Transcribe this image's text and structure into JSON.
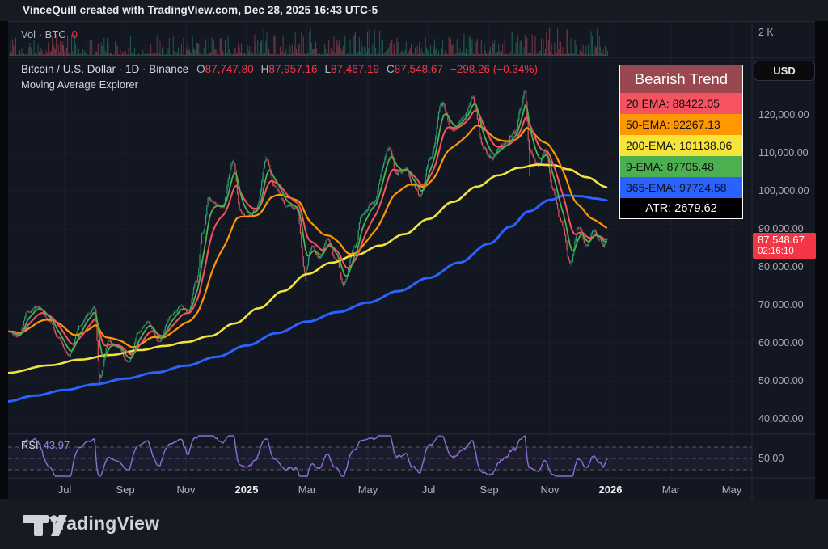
{
  "attribution": "VinceQuill created with TradingView.com, Dec 28, 2025 16:43 UTC-5",
  "volume_pane": {
    "source": "Vol",
    "sep": "·",
    "ticker": "BTC",
    "value": "0",
    "axis_label": "2 K"
  },
  "symbol_row": {
    "pair_line": "Bitcoin / U.S. Dollar · 1D · Binance",
    "ohlc": [
      {
        "k": "O",
        "v": "87,747.80"
      },
      {
        "k": "H",
        "v": "87,957.16"
      },
      {
        "k": "L",
        "v": "87,467.19"
      },
      {
        "k": "C",
        "v": "87,548.67"
      }
    ],
    "change": "−298.26 (−0.34%)"
  },
  "indicator_row": "Moving Average Explorer",
  "legend": {
    "title": "Bearish Trend",
    "title_bg": "#9a4850",
    "title_fg": "#ffffff",
    "rows": [
      {
        "label": "20 EMA: 88422.05",
        "bg": "#f7525f",
        "fg": "#101010"
      },
      {
        "label": "50-EMA: 92267.13",
        "bg": "#ff9800",
        "fg": "#101010"
      },
      {
        "label": "200-EMA: 101138.06",
        "bg": "#f7e43b",
        "fg": "#101010"
      },
      {
        "label": "9-EMA: 87705.48",
        "bg": "#4caf50",
        "fg": "#101010"
      },
      {
        "label": "365-EMA: 97724.58",
        "bg": "#2962ff",
        "fg": "#101010"
      }
    ],
    "atr_row": {
      "label": "ATR: 2679.62",
      "bg": "#000000",
      "fg": "#ffffff"
    }
  },
  "price_axis": {
    "currency_button": "USD",
    "ticks": [
      {
        "label": "120,000.00",
        "value": 120000
      },
      {
        "label": "110,000.00",
        "value": 110000
      },
      {
        "label": "100,000.00",
        "value": 100000
      },
      {
        "label": "90,000.00",
        "value": 90000
      },
      {
        "label": "80,000.00",
        "value": 80000
      },
      {
        "label": "70,000.00",
        "value": 70000
      },
      {
        "label": "60,000.00",
        "value": 60000
      },
      {
        "label": "50,000.00",
        "value": 50000
      },
      {
        "label": "40,000.00",
        "value": 40000
      }
    ],
    "last_price_label": "87,548.67",
    "countdown": "02:16:10"
  },
  "rsi_pane": {
    "label": "RSI",
    "value": "43.97",
    "axis_label": "50.00",
    "levels": [
      70,
      50,
      30
    ]
  },
  "time_axis": {
    "ticks": [
      {
        "label": "Jul",
        "m": 1,
        "bold": false
      },
      {
        "label": "Sep",
        "m": 3,
        "bold": false
      },
      {
        "label": "Nov",
        "m": 5,
        "bold": false
      },
      {
        "label": "2025",
        "m": 7,
        "bold": true
      },
      {
        "label": "Mar",
        "m": 9,
        "bold": false
      },
      {
        "label": "May",
        "m": 11,
        "bold": false
      },
      {
        "label": "Jul",
        "m": 13,
        "bold": false
      },
      {
        "label": "Sep",
        "m": 15,
        "bold": false
      },
      {
        "label": "Nov",
        "m": 17,
        "bold": false
      },
      {
        "label": "2026",
        "m": 19,
        "bold": true
      },
      {
        "label": "Mar",
        "m": 21,
        "bold": false
      },
      {
        "label": "May",
        "m": 23,
        "bold": false
      }
    ]
  },
  "footer": {
    "brand": "TradingView"
  },
  "colors": {
    "chart_bg": "#131722",
    "grid": "rgba(130,140,170,0.10)",
    "separator": "#2a2e39",
    "candle_up": "#2f9e7a",
    "candle_down": "#e25365",
    "ema9": "#4caf50",
    "ema20": "#f7525f",
    "ema50": "#ff9800",
    "ema200": "#f2e33c",
    "ema365": "#2962ff",
    "rsi_line": "#8c6fd0",
    "rsi_band": "rgba(126,87,194,0.09)",
    "rsi_dash": "#8a8e99",
    "accent_red": "#f23645",
    "axis_text": "#a9adb8"
  },
  "chart_data": {
    "type": "candlestick",
    "symbol": "Bitcoin / U.S. Dollar",
    "interval": "1D",
    "exchange": "Binance",
    "today_ohlc": {
      "open": 87747.8,
      "high": 87957.16,
      "low": 87467.19,
      "close": 87548.67,
      "change": -298.26,
      "change_pct": -0.34
    },
    "last_close": 87548.67,
    "indicator_values": {
      "ema9": 87705.48,
      "ema20": 88422.05,
      "ema50": 92267.13,
      "ema200": 101138.06,
      "ema365": 97724.58,
      "atr": 2679.62,
      "rsi": 43.97
    },
    "x_unit": "months_since_2024-06-01",
    "x_range": [
      -0.85,
      23.5
    ],
    "y_range_price": [
      38000,
      131000
    ],
    "rsi_levels": [
      70,
      50,
      30
    ],
    "price_keypoints": [
      [
        -0.9,
        63500
      ],
      [
        -0.55,
        61800
      ],
      [
        -0.2,
        68500
      ],
      [
        0.1,
        69800
      ],
      [
        0.5,
        66300
      ],
      [
        0.8,
        61200
      ],
      [
        1.15,
        57200
      ],
      [
        1.5,
        64800
      ],
      [
        1.8,
        67800
      ],
      [
        1.98,
        69300
      ],
      [
        2.16,
        51200
      ],
      [
        2.45,
        60800
      ],
      [
        2.75,
        58900
      ],
      [
        3.1,
        55200
      ],
      [
        3.45,
        63200
      ],
      [
        3.75,
        65500
      ],
      [
        4.1,
        60700
      ],
      [
        4.5,
        67400
      ],
      [
        4.85,
        69800
      ],
      [
        5.05,
        68200
      ],
      [
        5.35,
        76500
      ],
      [
        5.55,
        89500
      ],
      [
        5.75,
        98300
      ],
      [
        5.95,
        96800
      ],
      [
        6.2,
        95800
      ],
      [
        6.55,
        107800
      ],
      [
        6.8,
        94500
      ],
      [
        6.98,
        93200
      ],
      [
        7.3,
        94800
      ],
      [
        7.65,
        108200
      ],
      [
        7.95,
        101500
      ],
      [
        8.3,
        96300
      ],
      [
        8.65,
        95500
      ],
      [
        8.93,
        78800
      ],
      [
        9.15,
        85500
      ],
      [
        9.4,
        82800
      ],
      [
        9.65,
        87200
      ],
      [
        9.95,
        82300
      ],
      [
        10.2,
        75800
      ],
      [
        10.55,
        85300
      ],
      [
        10.8,
        93800
      ],
      [
        11.15,
        97200
      ],
      [
        11.7,
        111500
      ],
      [
        11.95,
        104800
      ],
      [
        12.25,
        105800
      ],
      [
        12.5,
        101500
      ],
      [
        12.72,
        98800
      ],
      [
        13.05,
        108300
      ],
      [
        13.45,
        122800
      ],
      [
        13.8,
        116500
      ],
      [
        14.15,
        119800
      ],
      [
        14.45,
        124200
      ],
      [
        14.8,
        111800
      ],
      [
        15.1,
        108800
      ],
      [
        15.5,
        112800
      ],
      [
        15.85,
        115500
      ],
      [
        16.05,
        122500
      ],
      [
        16.18,
        125900
      ],
      [
        16.33,
        110800
      ],
      [
        16.6,
        106800
      ],
      [
        16.85,
        110300
      ],
      [
        17.1,
        100800
      ],
      [
        17.35,
        92500
      ],
      [
        17.68,
        81200
      ],
      [
        17.95,
        90800
      ],
      [
        18.2,
        85800
      ],
      [
        18.45,
        90300
      ],
      [
        18.65,
        87200
      ],
      [
        18.78,
        85900
      ],
      [
        18.9,
        87548.67
      ]
    ],
    "wick_events": [
      [
        2.16,
        49200
      ],
      [
        6.55,
        108400
      ],
      [
        7.65,
        109400
      ],
      [
        8.93,
        76600
      ],
      [
        10.2,
        74400
      ],
      [
        11.7,
        112100
      ],
      [
        12.72,
        98100
      ],
      [
        13.45,
        123300
      ],
      [
        14.45,
        124500
      ],
      [
        16.18,
        126200
      ],
      [
        16.33,
        104100
      ],
      [
        17.68,
        80500
      ]
    ],
    "ema200_keypoints": [
      [
        -0.9,
        52300
      ],
      [
        0.5,
        54300
      ],
      [
        1.5,
        55800
      ],
      [
        2.5,
        57000
      ],
      [
        3.5,
        58300
      ],
      [
        4.3,
        59400
      ],
      [
        5,
        60400
      ],
      [
        5.8,
        62000
      ],
      [
        6.6,
        65300
      ],
      [
        7.4,
        69300
      ],
      [
        8.2,
        73800
      ],
      [
        9,
        78300
      ],
      [
        9.8,
        81300
      ],
      [
        10.6,
        83300
      ],
      [
        11.4,
        85800
      ],
      [
        12.2,
        88800
      ],
      [
        13,
        92800
      ],
      [
        13.8,
        97300
      ],
      [
        14.6,
        101300
      ],
      [
        15.3,
        104300
      ],
      [
        16,
        106300
      ],
      [
        16.6,
        107100
      ],
      [
        17.1,
        107000
      ],
      [
        17.6,
        105900
      ],
      [
        18.2,
        103800
      ],
      [
        18.9,
        101138.06
      ]
    ],
    "ema365_keypoints": [
      [
        -0.9,
        44800
      ],
      [
        0,
        46300
      ],
      [
        1,
        47800
      ],
      [
        2,
        49300
      ],
      [
        3,
        50800
      ],
      [
        4,
        52400
      ],
      [
        5,
        54200
      ],
      [
        6,
        56500
      ],
      [
        7,
        59500
      ],
      [
        8,
        62800
      ],
      [
        9,
        65800
      ],
      [
        10,
        68300
      ],
      [
        11,
        70800
      ],
      [
        12,
        73800
      ],
      [
        13,
        77300
      ],
      [
        14,
        81300
      ],
      [
        15,
        86300
      ],
      [
        15.7,
        90800
      ],
      [
        16.3,
        94800
      ],
      [
        17,
        97800
      ],
      [
        17.5,
        99000
      ],
      [
        18,
        98800
      ],
      [
        18.5,
        98200
      ],
      [
        18.9,
        97724.58
      ]
    ]
  }
}
